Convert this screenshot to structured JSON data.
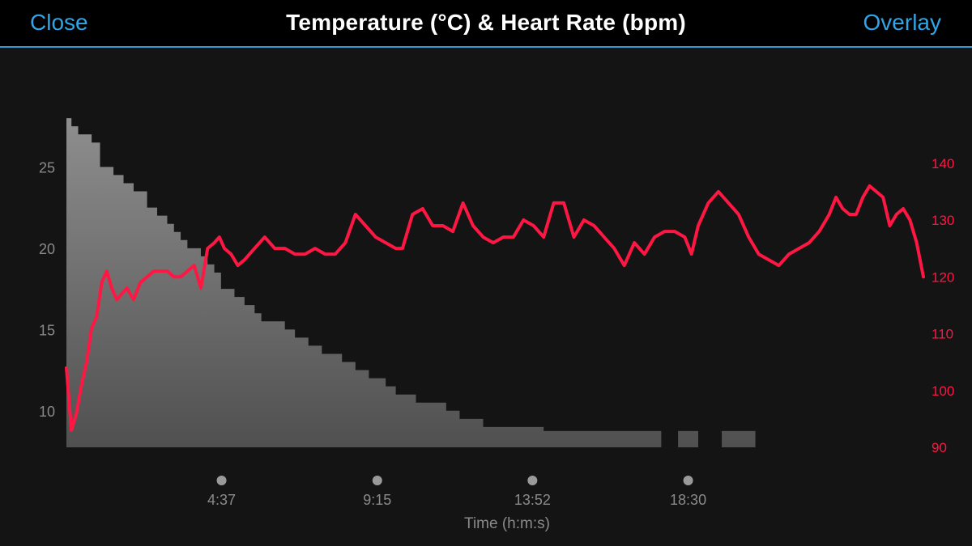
{
  "header": {
    "close_label": "Close",
    "title": "Temperature (°C) & Heart Rate (bpm)",
    "overlay_label": "Overlay"
  },
  "colors": {
    "background": "#141414",
    "header_bg": "#000000",
    "accent": "#2fa5e8",
    "heart_rate": "#ff1744",
    "temperature_fill_top": "#8e8e8e",
    "temperature_fill_bottom": "#505050",
    "axis_text": "#8a8a8a",
    "marker": "#9a9a9a"
  },
  "chart_data": {
    "type": "area+line",
    "title": "Temperature (°C) & Heart Rate (bpm)",
    "xlabel": "Time (h:m:s)",
    "x_unit": "minutes",
    "xlim": [
      0,
      25.5
    ],
    "x_tick_positions": [
      4.617,
      9.25,
      13.867,
      18.5
    ],
    "x_ticks": [
      "4:37",
      "9:15",
      "13:52",
      "18:30"
    ],
    "y_left": {
      "label": "Temperature (°C)",
      "ticks": [
        10,
        15,
        20,
        25
      ],
      "ylim": [
        7.75,
        28.9
      ]
    },
    "y_right": {
      "label": "Heart Rate (bpm)",
      "ticks": [
        90,
        100,
        110,
        120,
        130,
        140
      ],
      "ylim": [
        90,
        150.5
      ]
    },
    "series": [
      {
        "name": "Temperature",
        "axis": "left",
        "style": "step-area",
        "x": [
          0,
          0.15,
          0.35,
          0.75,
          1.0,
          1.4,
          1.7,
          2.0,
          2.4,
          2.7,
          3.0,
          3.2,
          3.4,
          3.6,
          4.0,
          4.2,
          4.4,
          4.6,
          5.0,
          5.3,
          5.6,
          5.8,
          6.5,
          6.8,
          7.2,
          7.6,
          8.2,
          8.6,
          9.0,
          9.5,
          9.8,
          10.4,
          11.3,
          11.7,
          12.0,
          12.4,
          14.2,
          14.9,
          17.7,
          18.2,
          18.8,
          19.0,
          19.5,
          20.0,
          20.5,
          21.2,
          21.5
        ],
        "y": [
          28.0,
          27.5,
          27.0,
          26.5,
          25.0,
          24.5,
          24.0,
          23.5,
          22.5,
          22.0,
          21.5,
          21.0,
          20.5,
          20.0,
          19.5,
          19.0,
          18.5,
          17.5,
          17.0,
          16.5,
          16.0,
          15.5,
          15.0,
          14.5,
          14.0,
          13.5,
          13.0,
          12.5,
          12.0,
          11.5,
          11.0,
          10.5,
          10.0,
          9.5,
          9.5,
          9.0,
          8.75,
          8.75,
          7.75,
          8.75,
          7.75,
          7.75,
          8.75,
          8.75,
          7.75,
          7.75,
          7.75
        ]
      },
      {
        "name": "Heart Rate",
        "axis": "right",
        "style": "line",
        "x": [
          0,
          0.15,
          0.3,
          0.45,
          0.6,
          0.75,
          0.9,
          1.05,
          1.2,
          1.35,
          1.5,
          1.65,
          1.8,
          2.0,
          2.2,
          2.4,
          2.6,
          2.8,
          3.0,
          3.2,
          3.4,
          3.6,
          3.8,
          4.0,
          4.2,
          4.4,
          4.55,
          4.7,
          4.9,
          5.1,
          5.3,
          5.6,
          5.9,
          6.2,
          6.5,
          6.8,
          7.1,
          7.4,
          7.7,
          8.0,
          8.3,
          8.6,
          8.9,
          9.2,
          9.5,
          9.8,
          10.0,
          10.3,
          10.6,
          10.9,
          11.2,
          11.5,
          11.8,
          12.1,
          12.4,
          12.7,
          13.0,
          13.3,
          13.6,
          13.9,
          14.2,
          14.5,
          14.8,
          15.1,
          15.4,
          15.7,
          16.0,
          16.3,
          16.6,
          16.9,
          17.2,
          17.5,
          17.8,
          18.1,
          18.4,
          18.6,
          18.8,
          19.1,
          19.4,
          19.7,
          20.0,
          20.3,
          20.6,
          20.9,
          21.2,
          21.5,
          21.8,
          22.1,
          22.4,
          22.7,
          22.9,
          23.1,
          23.3,
          23.5,
          23.7,
          23.9,
          24.1,
          24.3,
          24.5,
          24.7,
          24.9,
          25.1,
          25.3,
          25.5
        ],
        "y": [
          104,
          93,
          96,
          101,
          105,
          111,
          113,
          119,
          121,
          118,
          116,
          117,
          118,
          116,
          119,
          120,
          121,
          121,
          121,
          120,
          120,
          121,
          122,
          118,
          125,
          126,
          127,
          125,
          124,
          122,
          123,
          125,
          127,
          125,
          125,
          124,
          124,
          125,
          124,
          124,
          126,
          131,
          129,
          127,
          126,
          125,
          125,
          131,
          132,
          129,
          129,
          128,
          133,
          129,
          127,
          126,
          127,
          127,
          130,
          129,
          127,
          133,
          133,
          127,
          130,
          129,
          127,
          125,
          122,
          126,
          124,
          127,
          128,
          128,
          127,
          124,
          129,
          133,
          135,
          133,
          131,
          127,
          124,
          123,
          122,
          124,
          125,
          126,
          128,
          131,
          134,
          132,
          131,
          131,
          134,
          136,
          135,
          134,
          129,
          131,
          132,
          130,
          126,
          120
        ]
      }
    ]
  }
}
